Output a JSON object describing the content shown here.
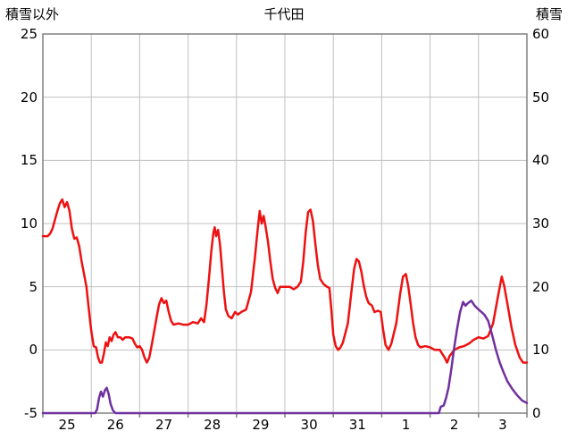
{
  "header": {
    "left_axis_title": "積雪以外",
    "chart_title": "千代田",
    "right_axis_title": "積雪"
  },
  "colors": {
    "temperature_line": "#ee1111",
    "snow_line": "#7030a0",
    "gridline": "#c0c0c0",
    "axis_border": "#808080",
    "text": "#000000"
  },
  "chart_data": {
    "type": "line",
    "title": "千代田",
    "left_axis": {
      "label": "積雪以外",
      "min": -5,
      "max": 25,
      "tick_step": 5,
      "ticks": [
        "25",
        "20",
        "15",
        "10",
        "5",
        "0",
        "-5"
      ]
    },
    "right_axis": {
      "label": "積雪",
      "min": 0,
      "max": 60,
      "tick_step": 10,
      "ticks": [
        "60",
        "50",
        "40",
        "30",
        "20",
        "10",
        "0"
      ]
    },
    "x_axis": {
      "min": 0,
      "max": 10,
      "labels": [
        "25",
        "26",
        "27",
        "28",
        "29",
        "30",
        "31",
        "1",
        "2",
        "3"
      ]
    },
    "grid": true,
    "legend": "none",
    "series": [
      {
        "name": "積雪以外",
        "axis": "left",
        "color": "#ee1111",
        "points": [
          [
            0,
            9
          ],
          [
            0.1,
            9
          ],
          [
            0.15,
            9.2
          ],
          [
            0.2,
            9.6
          ],
          [
            0.25,
            10.3
          ],
          [
            0.3,
            11
          ],
          [
            0.35,
            11.6
          ],
          [
            0.4,
            11.9
          ],
          [
            0.45,
            11.3
          ],
          [
            0.5,
            11.7
          ],
          [
            0.55,
            11
          ],
          [
            0.6,
            9.6
          ],
          [
            0.65,
            8.8
          ],
          [
            0.7,
            8.9
          ],
          [
            0.75,
            8.2
          ],
          [
            0.8,
            7
          ],
          [
            0.85,
            6
          ],
          [
            0.9,
            5
          ],
          [
            0.95,
            3.2
          ],
          [
            1,
            1.5
          ],
          [
            1.05,
            0.3
          ],
          [
            1.1,
            0.2
          ],
          [
            1.14,
            -0.6
          ],
          [
            1.18,
            -1
          ],
          [
            1.22,
            -1
          ],
          [
            1.26,
            -0.3
          ],
          [
            1.3,
            0.6
          ],
          [
            1.34,
            0.3
          ],
          [
            1.38,
            1
          ],
          [
            1.42,
            0.7
          ],
          [
            1.46,
            1.2
          ],
          [
            1.5,
            1.4
          ],
          [
            1.55,
            1
          ],
          [
            1.6,
            1
          ],
          [
            1.65,
            0.8
          ],
          [
            1.7,
            1
          ],
          [
            1.78,
            1
          ],
          [
            1.85,
            0.9
          ],
          [
            1.9,
            0.5
          ],
          [
            1.95,
            0.2
          ],
          [
            2,
            0.3
          ],
          [
            2.05,
            0
          ],
          [
            2.1,
            -0.6
          ],
          [
            2.15,
            -1
          ],
          [
            2.2,
            -0.6
          ],
          [
            2.25,
            0.4
          ],
          [
            2.3,
            1.5
          ],
          [
            2.35,
            2.6
          ],
          [
            2.4,
            3.6
          ],
          [
            2.45,
            4.1
          ],
          [
            2.5,
            3.7
          ],
          [
            2.55,
            3.9
          ],
          [
            2.6,
            3
          ],
          [
            2.65,
            2.3
          ],
          [
            2.7,
            2
          ],
          [
            2.8,
            2.1
          ],
          [
            2.9,
            2
          ],
          [
            3,
            2
          ],
          [
            3.1,
            2.2
          ],
          [
            3.2,
            2.1
          ],
          [
            3.27,
            2.5
          ],
          [
            3.33,
            2.2
          ],
          [
            3.38,
            3.6
          ],
          [
            3.43,
            5.6
          ],
          [
            3.48,
            7.8
          ],
          [
            3.52,
            9.2
          ],
          [
            3.55,
            9.7
          ],
          [
            3.58,
            9
          ],
          [
            3.62,
            9.5
          ],
          [
            3.66,
            8.3
          ],
          [
            3.7,
            6.5
          ],
          [
            3.74,
            4.6
          ],
          [
            3.78,
            3.2
          ],
          [
            3.83,
            2.7
          ],
          [
            3.9,
            2.5
          ],
          [
            3.97,
            3
          ],
          [
            4.03,
            2.8
          ],
          [
            4.1,
            3
          ],
          [
            4.2,
            3.2
          ],
          [
            4.3,
            4.6
          ],
          [
            4.38,
            7.3
          ],
          [
            4.44,
            9.6
          ],
          [
            4.48,
            11
          ],
          [
            4.52,
            10
          ],
          [
            4.56,
            10.6
          ],
          [
            4.6,
            9.8
          ],
          [
            4.65,
            8.6
          ],
          [
            4.7,
            7
          ],
          [
            4.75,
            5.6
          ],
          [
            4.8,
            4.9
          ],
          [
            4.85,
            4.5
          ],
          [
            4.9,
            5
          ],
          [
            5,
            5
          ],
          [
            5.1,
            5
          ],
          [
            5.18,
            4.8
          ],
          [
            5.26,
            5
          ],
          [
            5.33,
            5.4
          ],
          [
            5.38,
            7
          ],
          [
            5.43,
            9.3
          ],
          [
            5.48,
            10.9
          ],
          [
            5.53,
            11.1
          ],
          [
            5.58,
            10.2
          ],
          [
            5.63,
            8.4
          ],
          [
            5.68,
            6.7
          ],
          [
            5.73,
            5.6
          ],
          [
            5.8,
            5.2
          ],
          [
            5.87,
            5
          ],
          [
            5.92,
            4.9
          ],
          [
            5.96,
            3.2
          ],
          [
            6,
            1.2
          ],
          [
            6.05,
            0.3
          ],
          [
            6.1,
            0
          ],
          [
            6.15,
            0.2
          ],
          [
            6.2,
            0.6
          ],
          [
            6.3,
            2.1
          ],
          [
            6.38,
            4.8
          ],
          [
            6.43,
            6.4
          ],
          [
            6.48,
            7.2
          ],
          [
            6.53,
            7
          ],
          [
            6.58,
            6.2
          ],
          [
            6.63,
            5.1
          ],
          [
            6.68,
            4.2
          ],
          [
            6.73,
            3.7
          ],
          [
            6.8,
            3.5
          ],
          [
            6.85,
            3
          ],
          [
            6.92,
            3.1
          ],
          [
            6.98,
            3
          ],
          [
            7.03,
            1.6
          ],
          [
            7.08,
            0.4
          ],
          [
            7.14,
            0
          ],
          [
            7.2,
            0.5
          ],
          [
            7.3,
            2.1
          ],
          [
            7.38,
            4.4
          ],
          [
            7.44,
            5.8
          ],
          [
            7.5,
            6
          ],
          [
            7.55,
            5
          ],
          [
            7.6,
            3.6
          ],
          [
            7.65,
            2.1
          ],
          [
            7.7,
            1
          ],
          [
            7.75,
            0.4
          ],
          [
            7.8,
            0.2
          ],
          [
            7.9,
            0.3
          ],
          [
            8,
            0.2
          ],
          [
            8.1,
            0
          ],
          [
            8.2,
            0
          ],
          [
            8.3,
            -0.6
          ],
          [
            8.35,
            -1
          ],
          [
            8.4,
            -0.5
          ],
          [
            8.5,
            0
          ],
          [
            8.6,
            0.2
          ],
          [
            8.7,
            0.3
          ],
          [
            8.8,
            0.5
          ],
          [
            8.9,
            0.8
          ],
          [
            9,
            1
          ],
          [
            9.1,
            0.9
          ],
          [
            9.2,
            1.1
          ],
          [
            9.3,
            2.1
          ],
          [
            9.4,
            4.2
          ],
          [
            9.48,
            5.8
          ],
          [
            9.53,
            5.1
          ],
          [
            9.6,
            3.6
          ],
          [
            9.68,
            1.8
          ],
          [
            9.76,
            0.4
          ],
          [
            9.85,
            -0.6
          ],
          [
            9.92,
            -1
          ],
          [
            10,
            -1
          ]
        ]
      },
      {
        "name": "積雪",
        "axis": "right",
        "color": "#7030a0",
        "points": [
          [
            0,
            0
          ],
          [
            1.08,
            0
          ],
          [
            1.12,
            0.6
          ],
          [
            1.16,
            2.4
          ],
          [
            1.2,
            3.4
          ],
          [
            1.24,
            2.6
          ],
          [
            1.28,
            3.6
          ],
          [
            1.32,
            4
          ],
          [
            1.36,
            3
          ],
          [
            1.4,
            1.4
          ],
          [
            1.45,
            0.4
          ],
          [
            1.5,
            0
          ],
          [
            2,
            0
          ],
          [
            3,
            0
          ],
          [
            4,
            0
          ],
          [
            5,
            0
          ],
          [
            6,
            0
          ],
          [
            7,
            0
          ],
          [
            8,
            0
          ],
          [
            8.18,
            0
          ],
          [
            8.22,
            1
          ],
          [
            8.28,
            1.2
          ],
          [
            8.33,
            2.4
          ],
          [
            8.38,
            4
          ],
          [
            8.44,
            7
          ],
          [
            8.5,
            10.5
          ],
          [
            8.56,
            13.5
          ],
          [
            8.62,
            16
          ],
          [
            8.68,
            17.6
          ],
          [
            8.73,
            17
          ],
          [
            8.78,
            17.4
          ],
          [
            8.85,
            17.8
          ],
          [
            8.92,
            17
          ],
          [
            9,
            16.4
          ],
          [
            9.06,
            16
          ],
          [
            9.12,
            15.6
          ],
          [
            9.2,
            14.6
          ],
          [
            9.28,
            12.4
          ],
          [
            9.36,
            10
          ],
          [
            9.44,
            8
          ],
          [
            9.52,
            6.4
          ],
          [
            9.6,
            5
          ],
          [
            9.7,
            3.8
          ],
          [
            9.8,
            2.8
          ],
          [
            9.9,
            2
          ],
          [
            10,
            1.6
          ]
        ]
      }
    ]
  }
}
